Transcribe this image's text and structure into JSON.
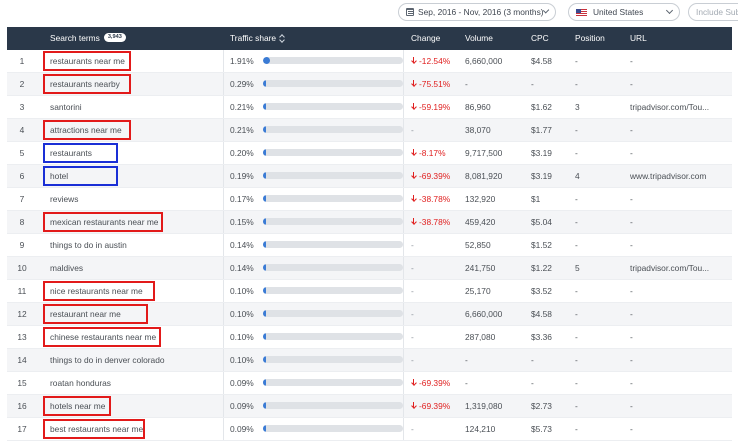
{
  "filters": {
    "date_range": "Sep, 2016 - Nov, 2016 (3 months)",
    "country": "United States",
    "include_sub": "Include Sub"
  },
  "columns": {
    "search_terms": "Search terms",
    "search_terms_count": "3,943",
    "traffic_share": "Traffic share",
    "change": "Change",
    "volume": "Volume",
    "cpc": "CPC",
    "position": "Position",
    "url": "URL"
  },
  "colors": {
    "header_bg": "#2a3849",
    "bar_fill": "#3a7bd5",
    "negative": "#e02020",
    "highlight_red": "#e21a1a",
    "highlight_blue": "#1a2fd6"
  },
  "rows": [
    {
      "num": "1",
      "term": "restaurants near me",
      "share": "1.91%",
      "share_value": 1.91,
      "change": "-12.54%",
      "volume": "6,660,000",
      "cpc": "$4.58",
      "position": "-",
      "url": "-",
      "highlight": "red"
    },
    {
      "num": "2",
      "term": "restaurants nearby",
      "share": "0.29%",
      "share_value": 0.29,
      "change": "-75.51%",
      "volume": "-",
      "cpc": "-",
      "position": "-",
      "url": "-",
      "highlight": "red"
    },
    {
      "num": "3",
      "term": "santorini",
      "share": "0.21%",
      "share_value": 0.21,
      "change": "-59.19%",
      "volume": "86,960",
      "cpc": "$1.62",
      "position": "3",
      "url": "tripadvisor.com/Tou...",
      "highlight": ""
    },
    {
      "num": "4",
      "term": "attractions near me",
      "share": "0.21%",
      "share_value": 0.21,
      "change": "-",
      "volume": "38,070",
      "cpc": "$1.77",
      "position": "-",
      "url": "-",
      "highlight": "red"
    },
    {
      "num": "5",
      "term": "restaurants",
      "share": "0.20%",
      "share_value": 0.2,
      "change": "-8.17%",
      "volume": "9,717,500",
      "cpc": "$3.19",
      "position": "-",
      "url": "-",
      "highlight": "blue"
    },
    {
      "num": "6",
      "term": "hotel",
      "share": "0.19%",
      "share_value": 0.19,
      "change": "-69.39%",
      "volume": "8,081,920",
      "cpc": "$3.19",
      "position": "4",
      "url": "www.tripadvisor.com",
      "highlight": "blue"
    },
    {
      "num": "7",
      "term": "reviews",
      "share": "0.17%",
      "share_value": 0.17,
      "change": "-38.78%",
      "volume": "132,920",
      "cpc": "$1",
      "position": "-",
      "url": "-",
      "highlight": ""
    },
    {
      "num": "8",
      "term": "mexican restaurants near me",
      "share": "0.15%",
      "share_value": 0.15,
      "change": "-38.78%",
      "volume": "459,420",
      "cpc": "$5.04",
      "position": "-",
      "url": "-",
      "highlight": "red"
    },
    {
      "num": "9",
      "term": "things to do in austin",
      "share": "0.14%",
      "share_value": 0.14,
      "change": "-",
      "volume": "52,850",
      "cpc": "$1.52",
      "position": "-",
      "url": "-",
      "highlight": ""
    },
    {
      "num": "10",
      "term": "maldives",
      "share": "0.14%",
      "share_value": 0.14,
      "change": "-",
      "volume": "241,750",
      "cpc": "$1.22",
      "position": "5",
      "url": "tripadvisor.com/Tou...",
      "highlight": ""
    },
    {
      "num": "11",
      "term": "nice restaurants near me",
      "share": "0.10%",
      "share_value": 0.1,
      "change": "-",
      "volume": "25,170",
      "cpc": "$3.52",
      "position": "-",
      "url": "-",
      "highlight": "red"
    },
    {
      "num": "12",
      "term": "restaurant near me",
      "share": "0.10%",
      "share_value": 0.1,
      "change": "-",
      "volume": "6,660,000",
      "cpc": "$4.58",
      "position": "-",
      "url": "-",
      "highlight": "red"
    },
    {
      "num": "13",
      "term": "chinese restaurants near me",
      "share": "0.10%",
      "share_value": 0.1,
      "change": "-",
      "volume": "287,080",
      "cpc": "$3.36",
      "position": "-",
      "url": "-",
      "highlight": "red"
    },
    {
      "num": "14",
      "term": "things to do in denver colorado",
      "share": "0.10%",
      "share_value": 0.1,
      "change": "-",
      "volume": "-",
      "cpc": "-",
      "position": "-",
      "url": "-",
      "highlight": ""
    },
    {
      "num": "15",
      "term": "roatan honduras",
      "share": "0.09%",
      "share_value": 0.09,
      "change": "-69.39%",
      "volume": "-",
      "cpc": "-",
      "position": "-",
      "url": "-",
      "highlight": ""
    },
    {
      "num": "16",
      "term": "hotels near me",
      "share": "0.09%",
      "share_value": 0.09,
      "change": "-69.39%",
      "volume": "1,319,080",
      "cpc": "$2.73",
      "position": "-",
      "url": "-",
      "highlight": "red"
    },
    {
      "num": "17",
      "term": "best restaurants near me",
      "share": "0.09%",
      "share_value": 0.09,
      "change": "-",
      "volume": "124,210",
      "cpc": "$5.73",
      "position": "-",
      "url": "-",
      "highlight": "red"
    }
  ]
}
